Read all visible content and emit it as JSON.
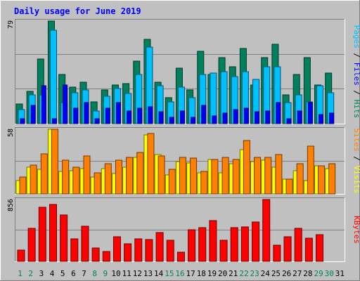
{
  "chart_data": {
    "type": "bar",
    "title": "Daily usage for June 2019",
    "colors": {
      "background": "#c0c0c0",
      "title": "#0000ff",
      "hits": "#00805c",
      "files": "#00c0ff",
      "pages": "#0000ff",
      "visits": "#ffff00",
      "sites": "#ff8000",
      "kbytes": "#ff0000",
      "weekend_day": "#00805c",
      "weekday": "#000000"
    },
    "days": [
      1,
      2,
      3,
      4,
      5,
      6,
      7,
      8,
      9,
      10,
      11,
      12,
      13,
      14,
      15,
      16,
      17,
      18,
      19,
      20,
      21,
      22,
      23,
      24,
      25,
      26,
      27,
      28,
      29,
      30,
      31
    ],
    "weekend_days": [
      1,
      2,
      8,
      9,
      15,
      16,
      22,
      23,
      29,
      30
    ],
    "panels": [
      {
        "id": "usage",
        "max_label": "79",
        "ylim": [
          0,
          79
        ],
        "right_label": [
          {
            "text": "Pages",
            "color": "#00c0ff"
          },
          {
            "text": " / ",
            "color": "#000000"
          },
          {
            "text": "Files",
            "color": "#0000ff"
          },
          {
            "text": " / ",
            "color": "#000000"
          },
          {
            "text": "Hits",
            "color": "#00805c"
          }
        ],
        "series": [
          {
            "name": "Hits",
            "color": "#00805c",
            "values": [
              15,
              25,
              50,
              79,
              38,
              28,
              32,
              17,
              26,
              30,
              31,
              48,
              65,
              32,
              20,
              43,
              26,
              56,
              38,
              51,
              44,
              58,
              30,
              51,
              61,
              22,
              38,
              51,
              30,
              39
            ]
          },
          {
            "name": "Files",
            "color": "#00c0ff",
            "values": [
              11,
              22,
              22,
              72,
              16,
              24,
              26,
              10,
              21,
              27,
              23,
              38,
              59,
              29,
              17,
              28,
              20,
              38,
              39,
              40,
              36,
              40,
              34,
              44,
              44,
              16,
              22,
              17,
              29,
              24
            ]
          },
          {
            "name": "Pages",
            "color": "#0000ff",
            "values": [
              4,
              14,
              29,
              4,
              30,
              12,
              16,
              4,
              12,
              16,
              10,
              12,
              13,
              9,
              5,
              10,
              5,
              14,
              6,
              8,
              11,
              12,
              9,
              10,
              16,
              4,
              10,
              16,
              7,
              8
            ]
          }
        ]
      },
      {
        "id": "visits",
        "max_label": "58",
        "ylim": [
          0,
          58
        ],
        "right_label": [
          {
            "text": "Sites",
            "color": "#ff8000"
          },
          {
            "text": " / ",
            "color": "#000000"
          },
          {
            "text": "Visits",
            "color": "#ffff00"
          }
        ],
        "series": [
          {
            "name": "Visits",
            "color": "#ffff00",
            "values": [
              12,
              24,
              22,
              58,
              20,
              21,
              23,
              15,
              23,
              18,
              24,
              33,
              53,
              35,
              17,
              29,
              28,
              19,
              31,
              19,
              27,
              40,
              29,
              30,
              24,
              13,
              21,
              12,
              25,
              23
            ]
          },
          {
            "name": "Sites",
            "color": "#ff8000",
            "values": [
              15,
              26,
              36,
              58,
              30,
              24,
              34,
              19,
              27,
              30,
              33,
              37,
              54,
              34,
              22,
              33,
              32,
              20,
              31,
              33,
              31,
              48,
              33,
              33,
              35,
              13,
              27,
              43,
              25,
              27
            ]
          }
        ]
      },
      {
        "id": "kbytes",
        "max_label": "856",
        "ylim": [
          0,
          856
        ],
        "right_label": [
          {
            "text": "KBytes",
            "color": "#ff0000"
          }
        ],
        "series": [
          {
            "name": "KBytes",
            "color": "#ff0000",
            "values": [
              155,
              460,
              745,
              792,
              642,
              307,
              487,
              187,
              132,
              345,
              240,
              309,
              305,
              401,
              296,
              131,
              440,
              464,
              569,
              289,
              466,
              478,
              542,
              856,
              220,
              339,
              456,
              323,
              373,
              0
            ]
          }
        ]
      }
    ]
  }
}
